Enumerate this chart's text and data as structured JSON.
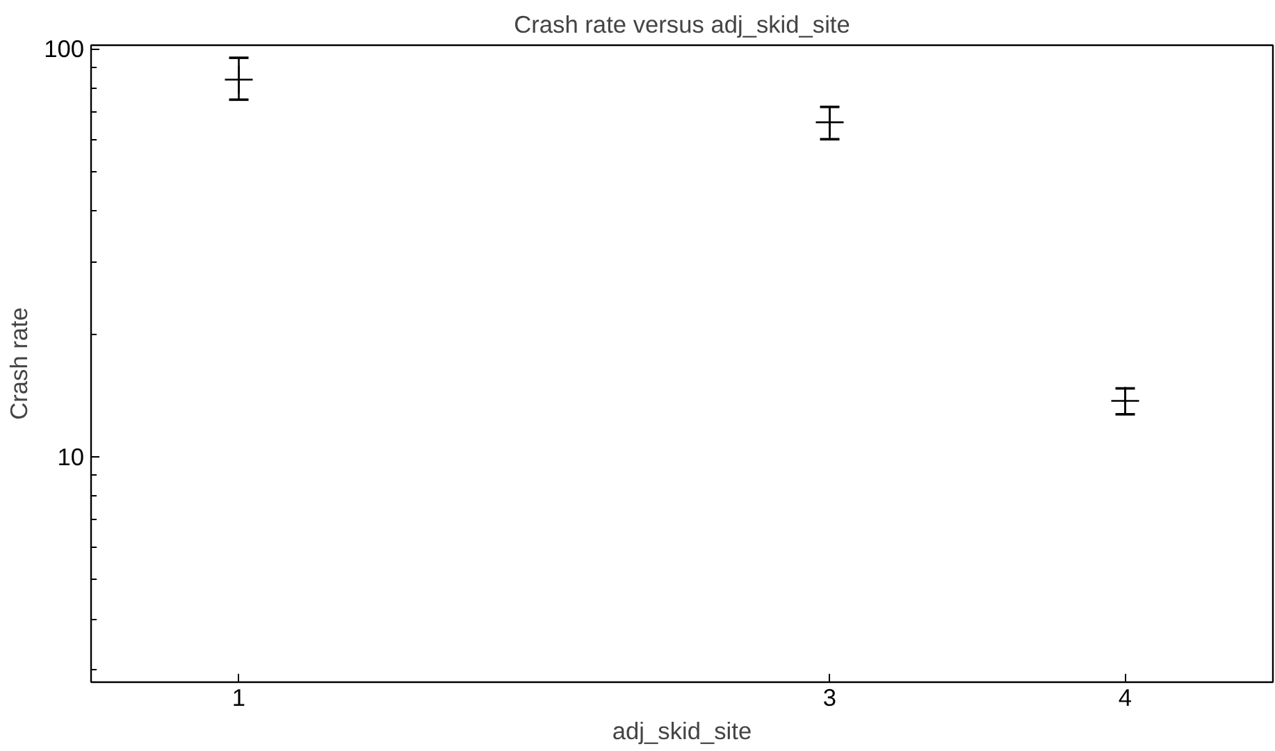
{
  "chart_data": {
    "type": "scatter",
    "title": "Crash rate versus adj_skid_site",
    "xlabel": "adj_skid_site",
    "ylabel": "Crash rate",
    "x": [
      1,
      3,
      4
    ],
    "values": [
      84,
      66,
      13.7
    ],
    "errors": [
      [
        75,
        95
      ],
      [
        60,
        72
      ],
      [
        12.7,
        14.7
      ]
    ],
    "color": "#000000",
    "marker": "cross",
    "log": "y",
    "grid": false,
    "xlim": [
      0.5,
      4.5
    ],
    "xticks": [
      1,
      3,
      4
    ],
    "ylim": [
      2.8,
      102
    ],
    "yticks": [
      10,
      100
    ]
  }
}
